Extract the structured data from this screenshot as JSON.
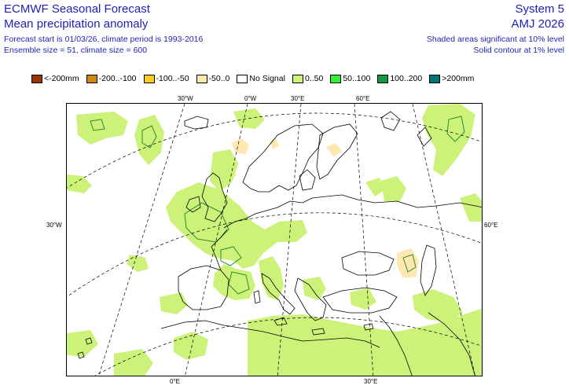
{
  "header": {
    "title_left": "ECMWF Seasonal Forecast",
    "subtitle_left": "Mean precipitation anomaly",
    "info_1": "Forecast start is 01/03/26, climate period is 1993-2016",
    "info_2": "Ensemble size = 51, climate size = 600",
    "title_right": "System 5",
    "subtitle_right": "AMJ 2026",
    "info_right_1": "Shaded areas significant at 10% level",
    "info_right_2": "Solid contour at 1% level"
  },
  "legend": [
    {
      "label": "<-200mm",
      "color": "#993300"
    },
    {
      "label": "-200..-100",
      "color": "#cc8811"
    },
    {
      "label": "-100..-50",
      "color": "#ffcc22"
    },
    {
      "label": "-50..0",
      "color": "#ffe8b0"
    },
    {
      "label": "No Signal",
      "color": "#ffffff"
    },
    {
      "label": "0..50",
      "color": "#ccf279"
    },
    {
      "label": "50..100",
      "color": "#33ee33"
    },
    {
      "label": "100..200",
      "color": "#119944"
    },
    {
      "label": ">200mm",
      "color": "#007777"
    }
  ],
  "axes": {
    "lon_top": [
      "30°W",
      "0°W",
      "30°E",
      "60°E"
    ],
    "lon_bottom": [
      "0°E",
      "30°E"
    ],
    "lat_left": "30°W",
    "lat_right": "60°E"
  },
  "colors": {
    "header_text": "#1f1fb8",
    "positive_anomaly": "#ccf279",
    "negative_anomaly": "#ffe8b0",
    "significance_contour": "#2e8b2e"
  }
}
